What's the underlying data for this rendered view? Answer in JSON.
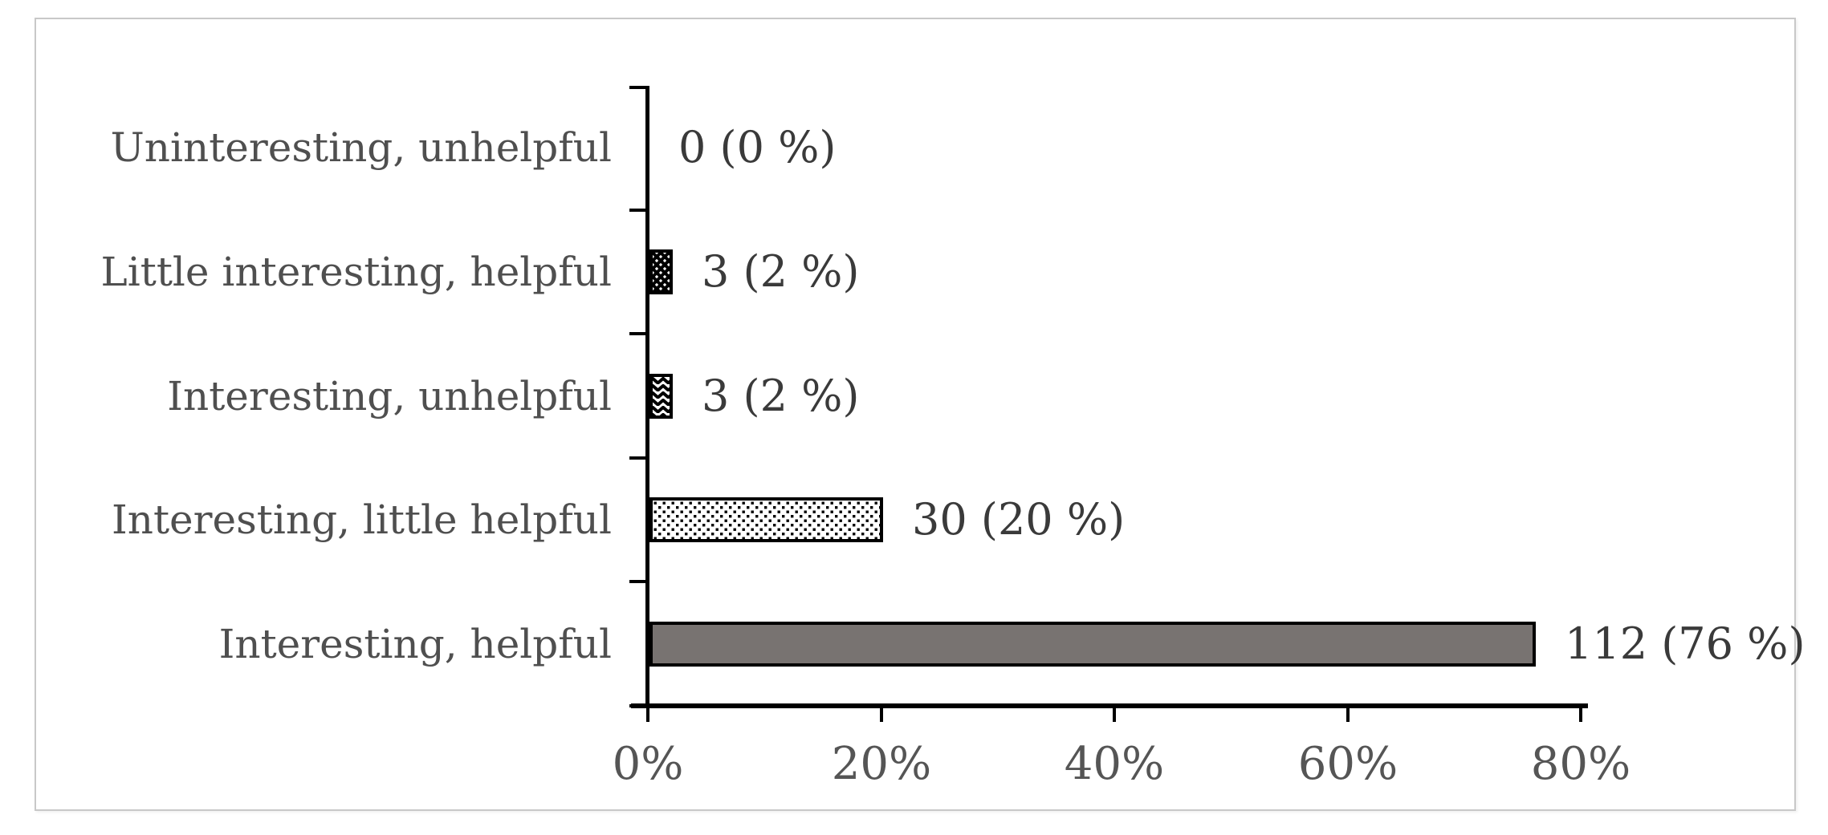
{
  "figure": {
    "background_color": "#ffffff",
    "border_color": "#c8c8c8"
  },
  "chart_data": {
    "type": "bar",
    "orientation": "horizontal",
    "title": "",
    "xlabel": "",
    "ylabel": "",
    "categories": [
      "Uninteresting, unhelpful",
      "Little interesting, helpful",
      "Interesting, unhelpful",
      "Interesting, little helpful",
      "Interesting, helpful"
    ],
    "counts": [
      0,
      3,
      3,
      30,
      112
    ],
    "values_percent": [
      0,
      2,
      2,
      20,
      76
    ],
    "data_labels": [
      "0 (0 %)",
      "3 (2 %)",
      "3 (2 %)",
      "30 (20 %)",
      "112 (76 %)"
    ],
    "bar_fill_styles": [
      "none",
      "diamond-crosshatch",
      "zigzag-chevron",
      "dotted",
      "solid-gray"
    ],
    "x_axis": {
      "min": 0,
      "max": 80,
      "tick_step": 20,
      "tick_labels": [
        "0%",
        "20%",
        "40%",
        "60%",
        "80%"
      ]
    },
    "grid": "off",
    "legend": "none",
    "colors": {
      "solid_bar_fill": "#787371",
      "bar_outline": "#000000",
      "axis_line": "#000000",
      "category_text": "#4f4f4f",
      "data_label_text": "#3a3a3a",
      "axis_tick_text": "#555555"
    }
  }
}
